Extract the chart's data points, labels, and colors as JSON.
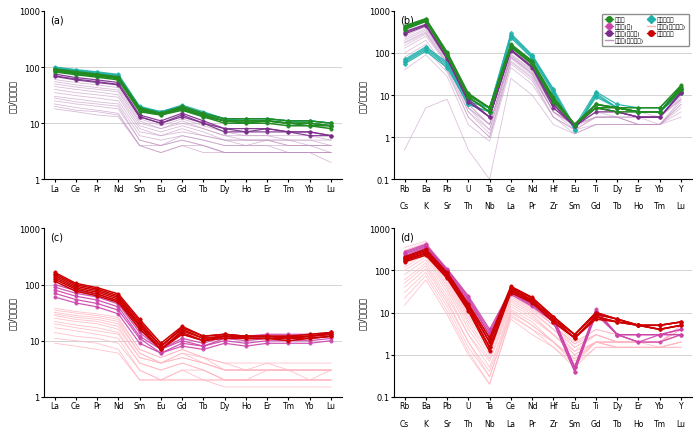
{
  "panel_a_label": "(a)",
  "panel_b_label": "(b)",
  "panel_c_label": "(c)",
  "panel_d_label": "(d)",
  "ree_elements": [
    "La",
    "Ce",
    "Pr",
    "Nd",
    "Sm",
    "Eu",
    "Gd",
    "Tb",
    "Dy",
    "Ho",
    "Er",
    "Tm",
    "Yb",
    "Lu"
  ],
  "spider_top": [
    "Rb",
    "Ba",
    "Pb",
    "U",
    "Ta",
    "Ce",
    "Nd",
    "Hf",
    "Eu",
    "Ti",
    "Dy",
    "Er",
    "Yb",
    "Y"
  ],
  "spider_bot": [
    "Cs",
    "K",
    "Sr",
    "Th",
    "Nb",
    "La",
    "Pr",
    "Zr",
    "Sm",
    "Gd",
    "Tb",
    "Ho",
    "Tm",
    "Lu"
  ],
  "c_green": "#228B22",
  "c_purple": "#7B2D8B",
  "c_cyan": "#20B2AA",
  "c_red": "#CC0000",
  "c_pink_m": "#CC44AA",
  "c_ref_purple": "#C090C0",
  "c_ref_pink": "#FFB6C1",
  "syenite_ree": [
    [
      90,
      80,
      72,
      65,
      18,
      15,
      19,
      14,
      11,
      11,
      11,
      10,
      10,
      9
    ],
    [
      85,
      76,
      69,
      62,
      17,
      14,
      18,
      13,
      11,
      10,
      11,
      10,
      9,
      9
    ],
    [
      88,
      78,
      71,
      64,
      17,
      15,
      18,
      14,
      11,
      11,
      11,
      10,
      10,
      9
    ],
    [
      82,
      73,
      66,
      59,
      16,
      14,
      17,
      13,
      10,
      10,
      10,
      9,
      9,
      8
    ],
    [
      93,
      83,
      75,
      67,
      19,
      15,
      20,
      15,
      12,
      12,
      12,
      11,
      11,
      10
    ]
  ],
  "syenite_shear_ree": [
    [
      75,
      65,
      59,
      53,
      14,
      11,
      15,
      11,
      8,
      8,
      8,
      7,
      7,
      6
    ],
    [
      70,
      61,
      55,
      49,
      13,
      10,
      14,
      10,
      8,
      7,
      8,
      7,
      7,
      6
    ],
    [
      68,
      59,
      53,
      48,
      13,
      10,
      13,
      10,
      7,
      7,
      7,
      7,
      6,
      6
    ]
  ],
  "granite_syenite_ree": [
    [
      95,
      86,
      78,
      70,
      19,
      16,
      20,
      15,
      12,
      12,
      12,
      11,
      11,
      10
    ],
    [
      92,
      83,
      75,
      68,
      18,
      15,
      19,
      14,
      12,
      11,
      11,
      10,
      10,
      9
    ],
    [
      98,
      88,
      80,
      72,
      19,
      16,
      20,
      15,
      12,
      12,
      12,
      11,
      11,
      10
    ],
    [
      100,
      90,
      82,
      74,
      20,
      16,
      21,
      16,
      12,
      12,
      12,
      11,
      11,
      10
    ]
  ],
  "ref_purple_a_ree": [
    [
      60,
      53,
      48,
      43,
      12,
      9,
      12,
      9,
      7,
      6,
      6,
      6,
      6,
      5
    ],
    [
      55,
      48,
      43,
      39,
      11,
      8,
      11,
      8,
      6,
      6,
      6,
      5,
      5,
      5
    ],
    [
      50,
      44,
      40,
      36,
      10,
      8,
      10,
      8,
      6,
      5,
      5,
      5,
      5,
      4
    ],
    [
      45,
      40,
      36,
      32,
      9,
      7,
      9,
      7,
      5,
      5,
      5,
      5,
      4,
      4
    ],
    [
      40,
      35,
      32,
      29,
      8,
      6,
      8,
      6,
      5,
      5,
      5,
      4,
      4,
      4
    ],
    [
      35,
      31,
      28,
      25,
      7,
      6,
      7,
      6,
      5,
      4,
      5,
      4,
      4,
      4
    ],
    [
      30,
      27,
      24,
      22,
      6,
      5,
      6,
      5,
      4,
      4,
      4,
      4,
      4,
      3
    ],
    [
      28,
      24,
      22,
      20,
      5,
      4,
      6,
      5,
      4,
      4,
      4,
      3,
      3,
      3
    ],
    [
      25,
      22,
      20,
      18,
      5,
      4,
      5,
      4,
      3,
      3,
      3,
      3,
      3,
      3
    ],
    [
      22,
      19,
      17,
      15,
      4,
      4,
      5,
      4,
      3,
      3,
      3,
      3,
      3,
      3
    ],
    [
      20,
      17,
      16,
      14,
      4,
      3,
      4,
      4,
      3,
      3,
      3,
      3,
      3,
      3
    ],
    [
      18,
      16,
      14,
      13,
      4,
      3,
      4,
      3,
      3,
      3,
      3,
      3,
      3,
      2
    ]
  ],
  "granite_c_ree": [
    [
      165,
      105,
      88,
      68,
      24,
      9,
      18,
      12,
      13,
      12,
      12,
      12,
      13,
      14
    ],
    [
      155,
      99,
      83,
      63,
      22,
      8,
      17,
      12,
      13,
      12,
      12,
      12,
      12,
      14
    ],
    [
      145,
      93,
      78,
      59,
      20,
      8,
      16,
      11,
      12,
      12,
      12,
      11,
      12,
      13
    ],
    [
      135,
      87,
      73,
      55,
      19,
      7,
      15,
      11,
      12,
      11,
      11,
      11,
      12,
      13
    ],
    [
      125,
      82,
      68,
      51,
      18,
      7,
      14,
      10,
      12,
      11,
      11,
      11,
      11,
      12
    ],
    [
      115,
      76,
      63,
      48,
      16,
      7,
      13,
      10,
      11,
      11,
      11,
      10,
      11,
      12
    ]
  ],
  "granite_enkeli_c_ree": [
    [
      100,
      78,
      67,
      51,
      16,
      8,
      13,
      10,
      13,
      12,
      13,
      13,
      13,
      14
    ],
    [
      90,
      70,
      60,
      45,
      14,
      7,
      11,
      9,
      12,
      11,
      12,
      12,
      12,
      13
    ],
    [
      80,
      62,
      53,
      40,
      12,
      7,
      10,
      8,
      11,
      10,
      11,
      11,
      11,
      12
    ],
    [
      70,
      54,
      46,
      35,
      11,
      6,
      9,
      8,
      10,
      9,
      10,
      10,
      10,
      11
    ],
    [
      60,
      47,
      40,
      30,
      9,
      6,
      8,
      7,
      9,
      8,
      9,
      9,
      9,
      10
    ]
  ],
  "ref_pink_c_ree": [
    [
      38,
      33,
      30,
      26,
      7,
      5,
      7,
      5,
      4,
      4,
      4,
      4,
      4,
      4
    ],
    [
      35,
      31,
      28,
      24,
      7,
      5,
      7,
      5,
      4,
      3,
      4,
      3,
      3,
      3
    ],
    [
      32,
      28,
      26,
      22,
      6,
      4,
      6,
      5,
      3,
      3,
      3,
      3,
      3,
      3
    ],
    [
      30,
      26,
      24,
      20,
      6,
      4,
      6,
      4,
      3,
      3,
      3,
      3,
      3,
      3
    ],
    [
      28,
      24,
      22,
      18,
      5,
      4,
      5,
      4,
      3,
      3,
      3,
      3,
      3,
      3
    ],
    [
      25,
      22,
      20,
      16,
      5,
      4,
      5,
      4,
      3,
      3,
      3,
      3,
      3,
      3
    ],
    [
      22,
      19,
      17,
      14,
      4,
      3,
      4,
      3,
      2,
      2,
      3,
      3,
      2,
      3
    ],
    [
      20,
      17,
      15,
      13,
      4,
      3,
      4,
      3,
      2,
      2,
      2,
      2,
      2,
      2
    ],
    [
      17,
      15,
      13,
      11,
      3,
      2,
      3,
      3,
      2,
      2,
      2,
      2,
      2,
      2
    ],
    [
      14,
      12,
      11,
      9,
      3,
      2,
      3,
      2,
      2,
      2,
      2,
      2,
      2,
      2
    ],
    [
      11,
      10,
      9,
      7,
      2,
      2,
      2,
      2,
      2,
      2,
      2,
      2,
      2,
      2
    ],
    [
      9,
      8,
      7,
      6,
      2,
      2,
      2,
      2,
      1.5,
      1.5,
      1.5,
      1.5,
      1.5,
      1.5
    ]
  ],
  "syenite_spider": [
    [
      380,
      580,
      90,
      9,
      4,
      140,
      55,
      7,
      2.0,
      5,
      5,
      4,
      4,
      14
    ],
    [
      400,
      610,
      95,
      10,
      5,
      150,
      60,
      8,
      2.0,
      6,
      5,
      4,
      4,
      15
    ],
    [
      420,
      630,
      100,
      10,
      5,
      155,
      62,
      8,
      2.0,
      6,
      5,
      4,
      4,
      16
    ],
    [
      360,
      560,
      88,
      9,
      4,
      138,
      54,
      7,
      2.0,
      5,
      4,
      4,
      4,
      13
    ],
    [
      440,
      650,
      105,
      11,
      5,
      162,
      65,
      9,
      2.0,
      6,
      5,
      5,
      5,
      17
    ]
  ],
  "syenite_shear_spider": [
    [
      300,
      460,
      75,
      7,
      3,
      118,
      46,
      6,
      1.8,
      5,
      4,
      3,
      3,
      11
    ],
    [
      320,
      480,
      80,
      8,
      3,
      122,
      48,
      6,
      1.8,
      5,
      4,
      3,
      3,
      12
    ],
    [
      280,
      440,
      72,
      7,
      3,
      114,
      44,
      5,
      1.8,
      4,
      4,
      3,
      3,
      11
    ]
  ],
  "granite_syenite_spider": [
    [
      60,
      120,
      50,
      6,
      4,
      250,
      80,
      12,
      1.5,
      10,
      5,
      4,
      4,
      12
    ],
    [
      65,
      130,
      55,
      7,
      5,
      270,
      85,
      13,
      1.5,
      11,
      5,
      4,
      4,
      13
    ],
    [
      55,
      110,
      45,
      6,
      4,
      230,
      75,
      11,
      1.5,
      9,
      5,
      4,
      4,
      11
    ],
    [
      70,
      140,
      60,
      8,
      5,
      290,
      90,
      14,
      1.8,
      12,
      6,
      5,
      5,
      14
    ]
  ],
  "ref_purple_b_spider": [
    [
      200,
      350,
      70,
      6,
      2,
      90,
      38,
      5,
      2.0,
      4,
      4,
      3,
      3,
      9
    ],
    [
      180,
      320,
      65,
      5,
      2,
      85,
      35,
      5,
      2.0,
      4,
      3,
      3,
      3,
      8
    ],
    [
      220,
      380,
      75,
      6,
      2,
      95,
      40,
      6,
      2.0,
      5,
      4,
      3,
      3,
      10
    ],
    [
      150,
      280,
      60,
      5,
      1.5,
      80,
      32,
      4,
      2.0,
      3,
      3,
      3,
      2,
      8
    ],
    [
      130,
      250,
      55,
      4,
      1.5,
      75,
      30,
      4,
      1.8,
      3,
      3,
      2,
      2,
      7
    ],
    [
      250,
      420,
      90,
      8,
      3,
      110,
      48,
      7,
      2.2,
      5,
      4,
      4,
      3,
      11
    ],
    [
      100,
      200,
      40,
      3,
      1,
      60,
      25,
      3,
      1.5,
      3,
      3,
      2,
      2,
      6
    ],
    [
      0.5,
      5,
      8,
      0.5,
      0.1,
      25,
      10,
      2,
      1.2,
      2,
      2,
      2,
      2,
      3
    ],
    [
      60,
      120,
      35,
      3,
      1,
      55,
      22,
      3,
      1.5,
      2,
      2,
      2,
      2,
      5
    ],
    [
      40,
      90,
      28,
      2,
      0.8,
      45,
      18,
      3,
      1.2,
      2,
      2,
      2,
      2,
      4
    ],
    [
      170,
      300,
      58,
      5,
      2,
      80,
      33,
      4,
      2.0,
      3,
      3,
      3,
      3,
      8
    ],
    [
      80,
      160,
      42,
      4,
      1.2,
      65,
      27,
      4,
      1.5,
      3,
      3,
      2,
      2,
      6
    ]
  ],
  "granite_d_spider": [
    [
      200,
      300,
      85,
      15,
      2,
      40,
      22,
      8,
      3.0,
      10,
      7,
      5,
      5,
      6
    ],
    [
      190,
      280,
      80,
      14,
      2,
      38,
      20,
      7,
      3.0,
      9,
      7,
      5,
      5,
      6
    ],
    [
      180,
      260,
      75,
      13,
      1.5,
      35,
      19,
      7,
      2.5,
      8,
      6,
      5,
      4,
      5
    ],
    [
      210,
      320,
      90,
      16,
      2.5,
      42,
      23,
      8,
      3.0,
      10,
      7,
      5,
      5,
      6
    ],
    [
      170,
      250,
      70,
      12,
      1.5,
      33,
      18,
      6,
      2.5,
      8,
      6,
      5,
      4,
      5
    ],
    [
      160,
      230,
      65,
      11,
      1.2,
      30,
      17,
      6,
      2.5,
      7,
      6,
      5,
      4,
      5
    ]
  ],
  "granite_enkeli_d_spider": [
    [
      280,
      420,
      110,
      25,
      4,
      35,
      18,
      8,
      0.5,
      12,
      3,
      3,
      3,
      4
    ],
    [
      260,
      400,
      105,
      23,
      3.5,
      33,
      17,
      7,
      0.5,
      11,
      3,
      3,
      3,
      4
    ],
    [
      240,
      380,
      100,
      21,
      3,
      31,
      16,
      7,
      0.5,
      10,
      3,
      3,
      3,
      3
    ],
    [
      220,
      360,
      95,
      19,
      3,
      29,
      15,
      6,
      0.4,
      10,
      3,
      2,
      3,
      3
    ],
    [
      200,
      340,
      90,
      17,
      2.5,
      27,
      14,
      6,
      0.4,
      9,
      3,
      2,
      2,
      3
    ]
  ],
  "ref_pink_d_spider": [
    [
      350,
      500,
      80,
      12,
      3,
      30,
      15,
      6,
      2.0,
      4,
      3,
      2,
      2,
      5
    ],
    [
      300,
      450,
      75,
      10,
      2.5,
      28,
      14,
      5,
      1.8,
      4,
      3,
      2,
      2,
      5
    ],
    [
      250,
      400,
      68,
      9,
      2,
      26,
      13,
      5,
      1.8,
      3,
      2,
      2,
      2,
      4
    ],
    [
      200,
      350,
      62,
      8,
      1.8,
      24,
      12,
      5,
      1.5,
      3,
      2,
      2,
      2,
      4
    ],
    [
      170,
      310,
      55,
      7,
      1.5,
      22,
      11,
      4,
      1.5,
      3,
      2,
      2,
      2,
      4
    ],
    [
      140,
      270,
      48,
      6,
      1.2,
      20,
      10,
      4,
      1.2,
      3,
      2,
      2,
      2,
      3
    ],
    [
      120,
      240,
      42,
      5,
      1.0,
      18,
      9,
      3,
      1.2,
      2,
      2,
      2,
      2,
      3
    ],
    [
      100,
      210,
      36,
      4,
      0.8,
      16,
      8,
      3,
      1.0,
      2,
      2,
      2,
      2,
      3
    ],
    [
      80,
      180,
      30,
      3,
      0.7,
      14,
      7,
      3,
      1.0,
      2,
      2,
      2,
      2,
      3
    ],
    [
      60,
      150,
      24,
      3,
      0.5,
      12,
      6,
      2,
      0.8,
      2,
      2,
      2,
      1.5,
      2
    ],
    [
      50,
      130,
      20,
      2,
      0.4,
      11,
      5,
      2,
      0.8,
      2,
      1.5,
      1.5,
      1.5,
      2
    ],
    [
      40,
      110,
      17,
      2,
      0.3,
      10,
      5,
      2,
      0.7,
      2,
      1.5,
      1.5,
      1.5,
      2
    ],
    [
      30,
      90,
      14,
      1.5,
      0.3,
      9,
      4,
      2,
      0.6,
      2,
      1.5,
      1.5,
      1.5,
      2
    ],
    [
      22,
      75,
      11,
      1.2,
      0.2,
      8,
      4,
      1.5,
      0.6,
      1.5,
      1.5,
      1.5,
      1.5,
      1.5
    ],
    [
      15,
      60,
      9,
      1,
      0.2,
      7,
      3,
      1.5,
      0.5,
      1.5,
      1.5,
      1.5,
      1.5,
      1.5
    ]
  ]
}
